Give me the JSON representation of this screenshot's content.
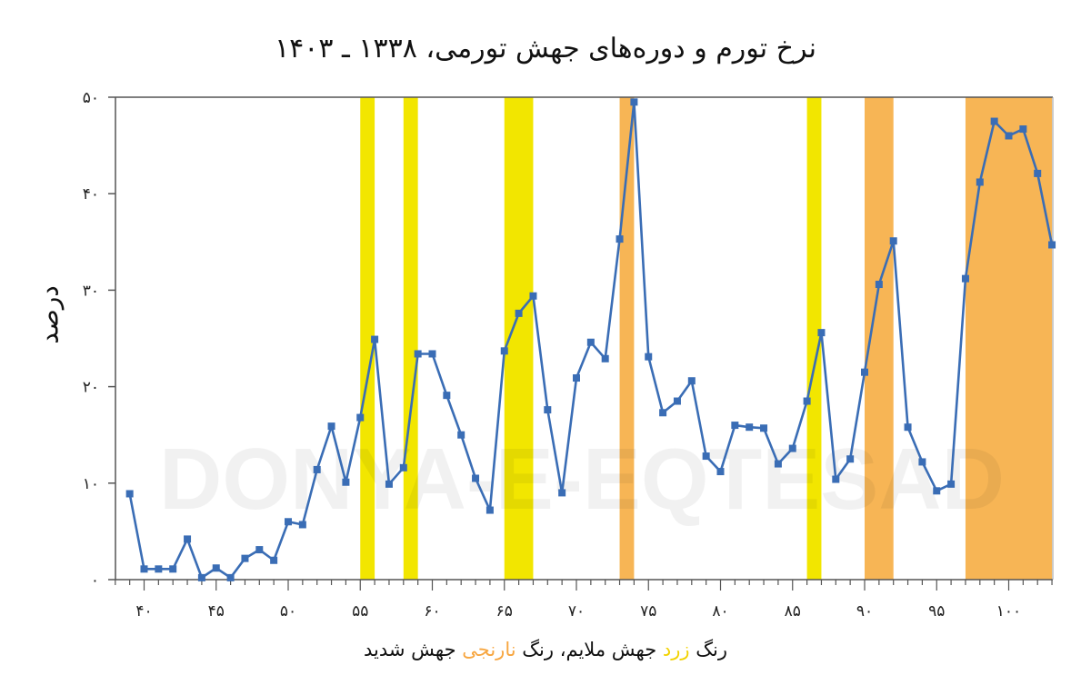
{
  "chart_data": {
    "type": "line",
    "title": "نرخ تورم و دوره‌های جهش تورمی، ۱۳۳۸ ـ ۱۴۰۳",
    "xlabel": "",
    "ylabel": "درصد",
    "ylim": [
      0,
      50
    ],
    "xlim": [
      37,
      103
    ],
    "grid": false,
    "y_ticks": [
      0,
      10,
      20,
      30,
      40,
      50
    ],
    "y_tick_labels": [
      "۰",
      "۱۰",
      "۲۰",
      "۳۰",
      "۴۰",
      "۵۰"
    ],
    "x_ticks": [
      40,
      45,
      50,
      55,
      60,
      65,
      70,
      75,
      80,
      85,
      90,
      95,
      100
    ],
    "x_tick_labels": [
      "۴۰",
      "۴۵",
      "۵۰",
      "۵۵",
      "۶۰",
      "۶۵",
      "۷۰",
      "۷۵",
      "۸۰",
      "۸۵",
      "۹۰",
      "۹۵",
      "۱۰۰"
    ],
    "series": [
      {
        "name": "نرخ تورم",
        "color": "#3a6db5",
        "x": [
          39,
          40,
          41,
          42,
          43,
          44,
          45,
          46,
          47,
          48,
          49,
          50,
          51,
          52,
          53,
          54,
          55,
          56,
          57,
          58,
          59,
          60,
          61,
          62,
          63,
          64,
          65,
          66,
          67,
          68,
          69,
          70,
          71,
          72,
          73,
          74,
          75,
          76,
          77,
          78,
          79,
          80,
          81,
          82,
          83,
          84,
          85,
          86,
          87,
          88,
          89,
          90,
          91,
          92,
          93,
          94,
          95,
          96,
          97,
          98,
          99,
          100,
          101,
          102,
          103
        ],
        "values": [
          8.9,
          1.1,
          1.1,
          1.1,
          4.2,
          0.2,
          1.2,
          0.2,
          2.2,
          3.1,
          2.0,
          6.0,
          5.7,
          11.4,
          15.9,
          10.1,
          16.8,
          24.9,
          9.9,
          11.6,
          23.4,
          23.4,
          19.1,
          15.0,
          10.5,
          7.2,
          23.7,
          27.6,
          29.4,
          17.6,
          9.0,
          20.9,
          24.6,
          22.9,
          35.3,
          49.5,
          23.1,
          17.3,
          18.5,
          20.6,
          12.8,
          11.2,
          16.0,
          15.8,
          15.7,
          12.0,
          13.6,
          18.5,
          25.6,
          10.4,
          12.5,
          21.5,
          30.6,
          35.1,
          15.8,
          12.2,
          9.2,
          9.9,
          31.2,
          41.2,
          47.5,
          46.0,
          46.7,
          42.1,
          34.7
        ]
      }
    ],
    "shaded_periods": [
      {
        "from": 55,
        "to": 56,
        "type": "mild",
        "color": "#f2e600"
      },
      {
        "from": 58,
        "to": 59,
        "type": "mild",
        "color": "#f2e600"
      },
      {
        "from": 65,
        "to": 67,
        "type": "mild",
        "color": "#f2e600"
      },
      {
        "from": 73,
        "to": 74,
        "type": "severe",
        "color": "#f7b555"
      },
      {
        "from": 86,
        "to": 87,
        "type": "mild",
        "color": "#f2e600"
      },
      {
        "from": 90,
        "to": 92,
        "type": "severe",
        "color": "#f7b555"
      },
      {
        "from": 97,
        "to": 103,
        "type": "severe",
        "color": "#f7b555"
      }
    ],
    "legend": {
      "position": "bottom",
      "text_parts": [
        "رنگ ",
        "زرد",
        " جهش ملایم، رنگ ",
        "نارنجی",
        " جهش شدید"
      ]
    },
    "watermark": "DONYA-E-EQTESAD"
  }
}
